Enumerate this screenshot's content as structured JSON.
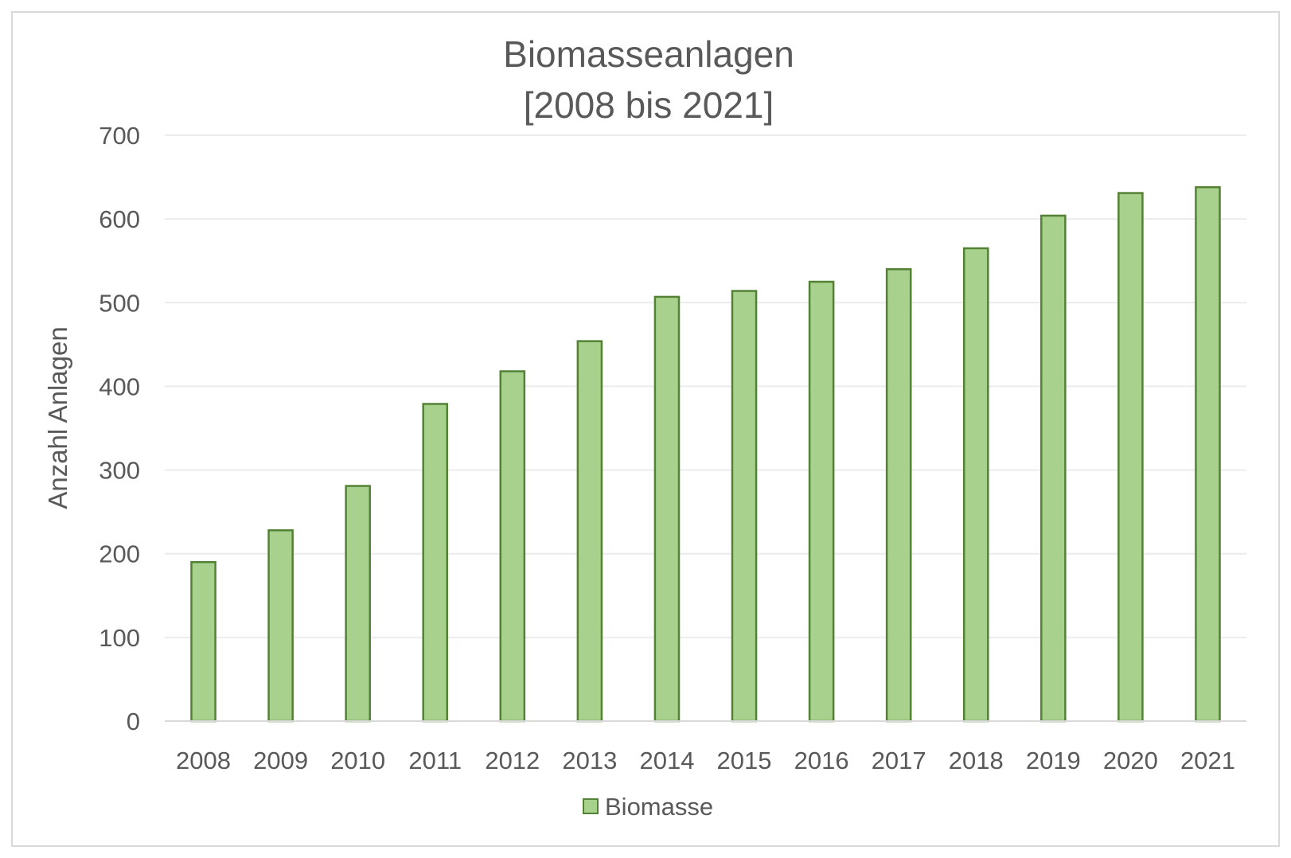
{
  "chart_data": {
    "type": "bar",
    "title_lines": [
      "Biomasseanlagen",
      "[2008 bis 2021]"
    ],
    "xlabel": "",
    "ylabel": "Anzahl Anlagen",
    "ylim": [
      0,
      700
    ],
    "yticks": [
      0,
      100,
      200,
      300,
      400,
      500,
      600,
      700
    ],
    "categories": [
      "2008",
      "2009",
      "2010",
      "2011",
      "2012",
      "2013",
      "2014",
      "2015",
      "2016",
      "2017",
      "2018",
      "2019",
      "2020",
      "2021"
    ],
    "series": [
      {
        "name": "Biomasse",
        "values": [
          190,
          228,
          281,
          379,
          418,
          454,
          507,
          514,
          525,
          540,
          565,
          604,
          631,
          638
        ]
      }
    ],
    "grid": true,
    "legend_position": "bottom",
    "colors": {
      "bar_fill": "#a9d18e",
      "bar_stroke": "#548235",
      "grid": "#ececec",
      "axis": "#d9d9d9",
      "text": "#595959"
    }
  }
}
